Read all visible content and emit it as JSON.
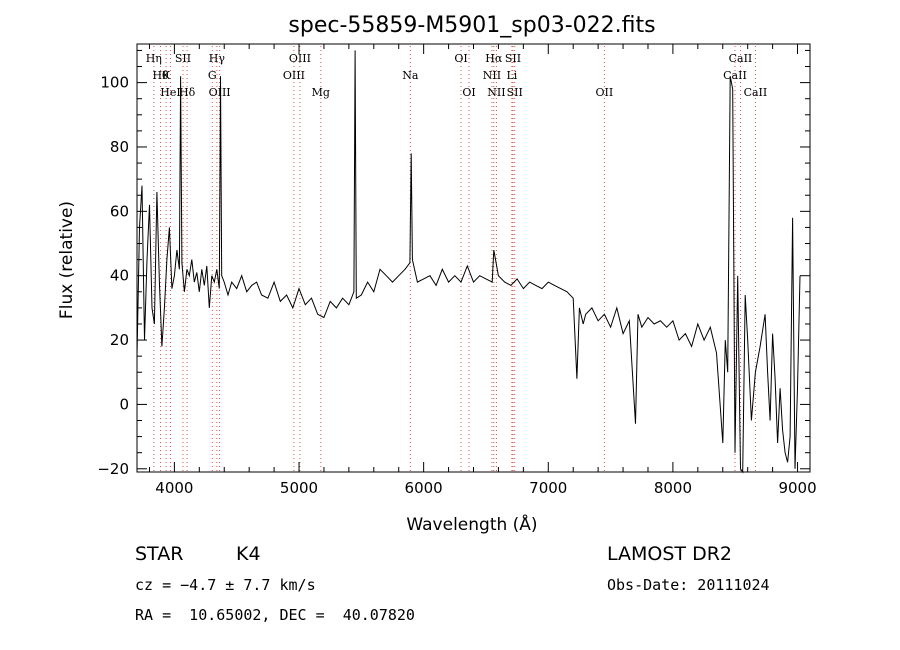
{
  "chart_data": {
    "type": "line",
    "title": "spec-55859-M5901_sp03-022.fits",
    "xlabel": "Wavelength (Å)",
    "ylabel": "Flux (relative)",
    "xlim": [
      3700,
      9100
    ],
    "ylim": [
      -21,
      112
    ],
    "xticks": [
      4000,
      5000,
      6000,
      7000,
      8000,
      9000
    ],
    "yticks": [
      -20,
      0,
      20,
      40,
      60,
      80,
      100
    ],
    "grid": false,
    "line_color": "#000000",
    "marker_color": "#d9534f",
    "series": [
      {
        "x": [
          3700,
          3720,
          3740,
          3760,
          3780,
          3800,
          3820,
          3840,
          3860,
          3880,
          3900,
          3920,
          3940,
          3960,
          3980,
          4000,
          4020,
          4040,
          4050,
          4060,
          4080,
          4100,
          4120,
          4140,
          4160,
          4180,
          4200,
          4220,
          4240,
          4260,
          4280,
          4300,
          4320,
          4340,
          4360,
          4370,
          4380,
          4400,
          4430,
          4460,
          4500,
          4540,
          4580,
          4620,
          4660,
          4700,
          4750,
          4800,
          4850,
          4900,
          4950,
          5000,
          5050,
          5100,
          5150,
          5200,
          5250,
          5300,
          5350,
          5400,
          5440,
          5450,
          5460,
          5500,
          5550,
          5600,
          5650,
          5700,
          5750,
          5800,
          5850,
          5890,
          5900,
          5910,
          5950,
          6000,
          6050,
          6100,
          6150,
          6200,
          6250,
          6300,
          6350,
          6400,
          6450,
          6500,
          6550,
          6563,
          6600,
          6650,
          6700,
          6750,
          6800,
          6850,
          6900,
          6950,
          7000,
          7050,
          7100,
          7150,
          7200,
          7230,
          7250,
          7280,
          7300,
          7350,
          7400,
          7450,
          7500,
          7550,
          7600,
          7650,
          7700,
          7720,
          7750,
          7800,
          7850,
          7900,
          7950,
          8000,
          8050,
          8100,
          8150,
          8200,
          8250,
          8300,
          8350,
          8400,
          8420,
          8440,
          8460,
          8480,
          8498,
          8520,
          8542,
          8560,
          8580,
          8600,
          8630,
          8662,
          8700,
          8740,
          8760,
          8780,
          8800,
          8820,
          8840,
          8860,
          8880,
          8900,
          8920,
          8940,
          8960,
          8980,
          9000,
          9020
        ],
        "values": [
          15,
          55,
          68,
          20,
          45,
          62,
          30,
          25,
          66,
          38,
          18,
          30,
          45,
          55,
          36,
          40,
          48,
          42,
          102,
          44,
          35,
          42,
          40,
          45,
          38,
          41,
          35,
          42,
          37,
          43,
          30,
          40,
          38,
          42,
          36,
          102,
          40,
          38,
          34,
          38,
          36,
          40,
          35,
          37,
          38,
          34,
          33,
          38,
          32,
          34,
          30,
          36,
          31,
          33,
          28,
          27,
          32,
          30,
          33,
          31,
          35,
          110,
          33,
          34,
          38,
          35,
          42,
          40,
          38,
          40,
          42,
          44,
          78,
          45,
          38,
          39,
          40,
          37,
          42,
          38,
          40,
          38,
          43,
          38,
          40,
          39,
          38,
          48,
          40,
          38,
          37,
          39,
          36,
          38,
          37,
          36,
          38,
          37,
          36,
          35,
          33,
          8,
          30,
          25,
          28,
          30,
          26,
          28,
          24,
          30,
          22,
          26,
          -6,
          28,
          24,
          27,
          25,
          26,
          24,
          26,
          20,
          22,
          18,
          25,
          20,
          24,
          16,
          -12,
          20,
          10,
          102,
          98,
          -15,
          40,
          -20,
          -22,
          34,
          20,
          -5,
          10,
          18,
          28,
          10,
          -5,
          22,
          8,
          -12,
          5,
          -8,
          -15,
          -18,
          -10,
          58,
          -20,
          5,
          40
        ]
      }
    ],
    "line_markers": [
      {
        "wl": 3835,
        "label": "Hη",
        "row": 0
      },
      {
        "wl": 3889,
        "label": "Hθ",
        "row": 1
      },
      {
        "wl": 3934,
        "label": "K",
        "row": 1
      },
      {
        "wl": 3969,
        "label": "HeI",
        "row": 2
      },
      {
        "wl": 4069,
        "label": "SII",
        "row": 0
      },
      {
        "wl": 4102,
        "label": "Hδ",
        "row": 2
      },
      {
        "wl": 4304,
        "label": "G",
        "row": 1
      },
      {
        "wl": 4341,
        "label": "Hγ",
        "row": 0
      },
      {
        "wl": 4363,
        "label": "OIII",
        "row": 2
      },
      {
        "wl": 4959,
        "label": "OIII",
        "row": 1
      },
      {
        "wl": 5007,
        "label": "OIII",
        "row": 0
      },
      {
        "wl": 5175,
        "label": "Mg",
        "row": 2
      },
      {
        "wl": 5893,
        "label": "Na",
        "row": 1
      },
      {
        "wl": 6300,
        "label": "OI",
        "row": 0
      },
      {
        "wl": 6364,
        "label": "OI",
        "row": 2
      },
      {
        "wl": 6548,
        "label": "NII",
        "row": 1
      },
      {
        "wl": 6563,
        "label": "Hα",
        "row": 0
      },
      {
        "wl": 6584,
        "label": "NII",
        "row": 2
      },
      {
        "wl": 6708,
        "label": "Li",
        "row": 1
      },
      {
        "wl": 6717,
        "label": "SII",
        "row": 0
      },
      {
        "wl": 6731,
        "label": "SII",
        "row": 2
      },
      {
        "wl": 7450,
        "label": "OII",
        "row": 2
      },
      {
        "wl": 8498,
        "label": "CaII",
        "row": 1
      },
      {
        "wl": 8542,
        "label": "CaII",
        "row": 0
      },
      {
        "wl": 8662,
        "label": "CaII",
        "row": 2
      }
    ]
  },
  "info": {
    "object_type": "STAR",
    "subclass": "K4",
    "survey": "LAMOST DR2",
    "cz": "cz = −4.7 ± 7.7 km/s",
    "coords": "RA =  10.65002, DEC =  40.07820",
    "obs_date": "Obs-Date: 20111024"
  }
}
